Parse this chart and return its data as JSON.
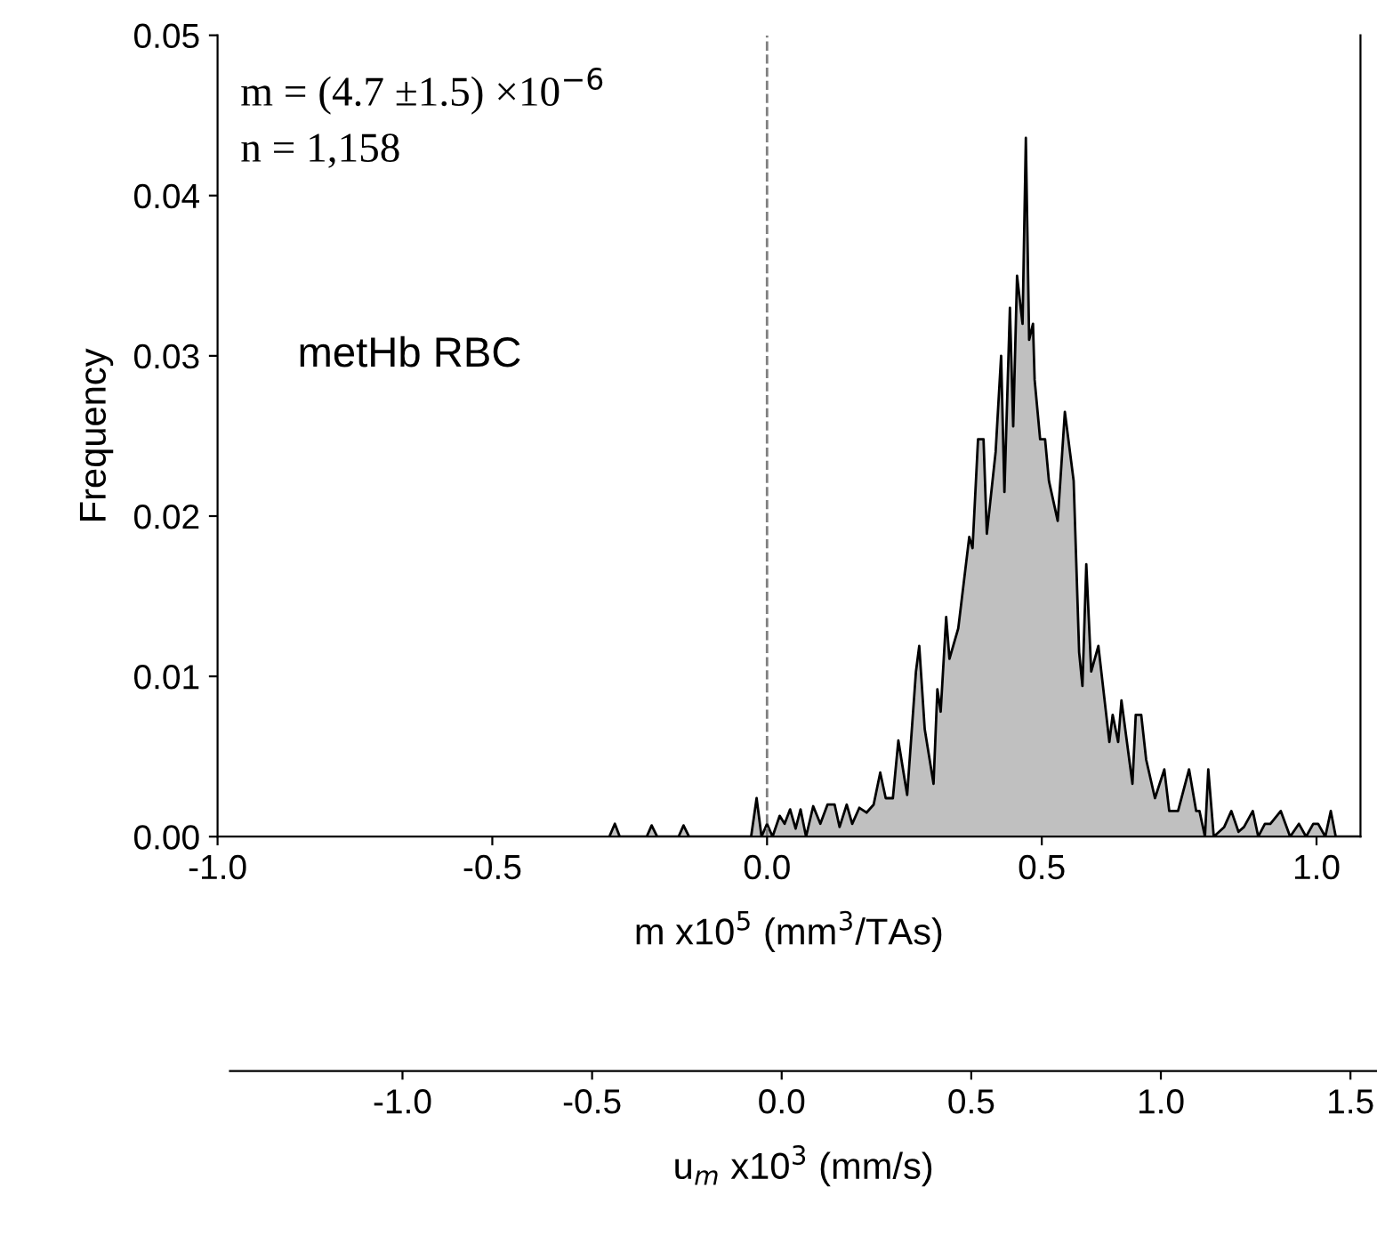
{
  "chart_data": {
    "type": "area",
    "xlabel": "m x10$^{5}$ (mm$^{3}$/TAs)",
    "ylabel": "Frequency",
    "x2label": "u$_{m}$ x10$^{3}$ (mm/s)",
    "annotations": [
      "m = (4.7 ±1.5) ×10$^{−6}$",
      "n = 1,158",
      "metHb RBC"
    ],
    "xlim": [
      -1.0,
      1.08
    ],
    "xticks": [
      {
        "value": -1.0,
        "label": "-1.0"
      },
      {
        "value": -0.5,
        "label": "-0.5"
      },
      {
        "value": 0.0,
        "label": "0.0"
      },
      {
        "value": 0.5,
        "label": "0.5"
      },
      {
        "value": 1.0,
        "label": "1.0"
      }
    ],
    "ylim": [
      0,
      0.05
    ],
    "yticks": [
      {
        "value": 0,
        "label": "0.00"
      },
      {
        "value": 0.01,
        "label": "0.01"
      },
      {
        "value": 0.02,
        "label": "0.02"
      },
      {
        "value": 0.03,
        "label": "0.03"
      },
      {
        "value": 0.04,
        "label": "0.04"
      },
      {
        "value": 0.05,
        "label": "0.05"
      }
    ],
    "x2lim": [
      -1.455,
      1.57
    ],
    "x2ticks": [
      {
        "value": -1.0,
        "label": "-1.0"
      },
      {
        "value": -0.5,
        "label": "-0.5"
      },
      {
        "value": 0.0,
        "label": "0.0"
      },
      {
        "value": 0.5,
        "label": "0.5"
      },
      {
        "value": 1.0,
        "label": "1.0"
      },
      {
        "value": 1.5,
        "label": "1.5"
      }
    ],
    "ref_lines": [
      {
        "axis": "x",
        "value": 0,
        "color": "#808080",
        "line_style": "dashed"
      }
    ],
    "grid": false,
    "legend": false,
    "marker": "none",
    "line_style": "solid",
    "series": [
      {
        "color": "#c0c0c0",
        "x": [
          -0.287,
          -0.277,
          -0.268,
          -0.219,
          -0.21,
          -0.2,
          -0.161,
          -0.152,
          -0.142,
          -0.029,
          -0.019,
          -0.01,
          0,
          0.01,
          0.023,
          0.032,
          0.042,
          0.052,
          0.061,
          0.071,
          0.084,
          0.097,
          0.11,
          0.123,
          0.132,
          0.145,
          0.155,
          0.168,
          0.181,
          0.194,
          0.206,
          0.216,
          0.229,
          0.239,
          0.255,
          0.271,
          0.277,
          0.287,
          0.303,
          0.31,
          0.316,
          0.326,
          0.332,
          0.348,
          0.368,
          0.374,
          0.384,
          0.394,
          0.4,
          0.416,
          0.426,
          0.432,
          0.442,
          0.448,
          0.455,
          0.465,
          0.471,
          0.477,
          0.484,
          0.487,
          0.497,
          0.506,
          0.513,
          0.529,
          0.542,
          0.558,
          0.568,
          0.574,
          0.581,
          0.59,
          0.603,
          0.623,
          0.629,
          0.639,
          0.645,
          0.665,
          0.671,
          0.681,
          0.69,
          0.706,
          0.723,
          0.732,
          0.748,
          0.768,
          0.781,
          0.787,
          0.797,
          0.803,
          0.813,
          0.832,
          0.845,
          0.858,
          0.868,
          0.884,
          0.894,
          0.906,
          0.916,
          0.935,
          0.952,
          0.968,
          0.981,
          0.994,
          1.003,
          1.016,
          1.026,
          1.035,
          1.077
        ],
        "values": [
          0,
          0.0008,
          0,
          0,
          0.0007,
          0,
          0,
          0.0007,
          0,
          0,
          0.0024,
          0,
          0.0008,
          0,
          0.0013,
          0.0008,
          0.0017,
          0.0005,
          0.0017,
          0,
          0.0019,
          0.0008,
          0.002,
          0.002,
          0.0006,
          0.002,
          0.0008,
          0.0018,
          0.0015,
          0.002,
          0.004,
          0.0024,
          0.0024,
          0.006,
          0.0026,
          0.0103,
          0.0119,
          0.0067,
          0.0033,
          0.0092,
          0.0078,
          0.0137,
          0.0111,
          0.013,
          0.0187,
          0.018,
          0.0248,
          0.0248,
          0.0189,
          0.024,
          0.03,
          0.0215,
          0.033,
          0.0256,
          0.035,
          0.032,
          0.0436,
          0.031,
          0.032,
          0.0285,
          0.0248,
          0.0248,
          0.0222,
          0.0197,
          0.0265,
          0.0222,
          0.0115,
          0.0094,
          0.017,
          0.0103,
          0.0119,
          0.0059,
          0.0076,
          0.0059,
          0.0085,
          0.0033,
          0.0076,
          0.0076,
          0.0048,
          0.0024,
          0.0042,
          0.0016,
          0.0016,
          0.0042,
          0.0016,
          0.0016,
          0,
          0.0042,
          0,
          0.0006,
          0.0016,
          0.0003,
          0.0006,
          0.0016,
          0,
          0.0008,
          0.0008,
          0.0016,
          0,
          0.0008,
          0,
          0.0008,
          0.0008,
          0,
          0.0016,
          0,
          0
        ]
      }
    ]
  }
}
